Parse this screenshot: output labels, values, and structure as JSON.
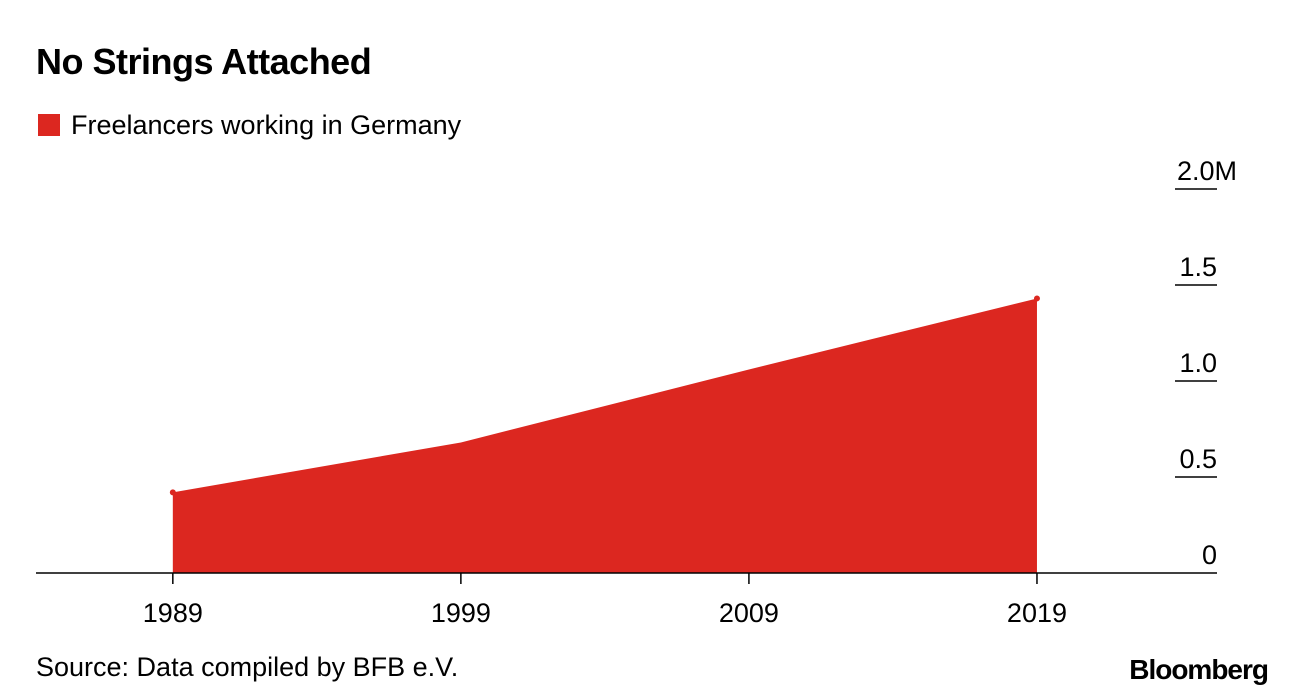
{
  "title": "No Strings Attached",
  "source": "Source: Data compiled by BFB e.V.",
  "brand": "Bloomberg",
  "colors": {
    "series": "#dc2720",
    "axis": "#000000"
  },
  "chart_data": {
    "type": "area",
    "title": "No Strings Attached",
    "xlabel": "",
    "ylabel": "",
    "x": [
      1989,
      1999,
      2009,
      2019
    ],
    "series": [
      {
        "name": "Freelancers working in Germany",
        "values": [
          0.42,
          0.68,
          1.06,
          1.43
        ]
      }
    ],
    "xticks": [
      "1989",
      "1999",
      "2009",
      "2019"
    ],
    "yticks": [
      "0",
      "0.5",
      "1.0",
      "1.5",
      "2.0M"
    ],
    "ytick_values": [
      0,
      0.5,
      1.0,
      1.5,
      2.0
    ],
    "xlim": [
      1984.25,
      2025.25
    ],
    "ylim": [
      0,
      2.0
    ],
    "grid": false,
    "legend": "top-left"
  }
}
